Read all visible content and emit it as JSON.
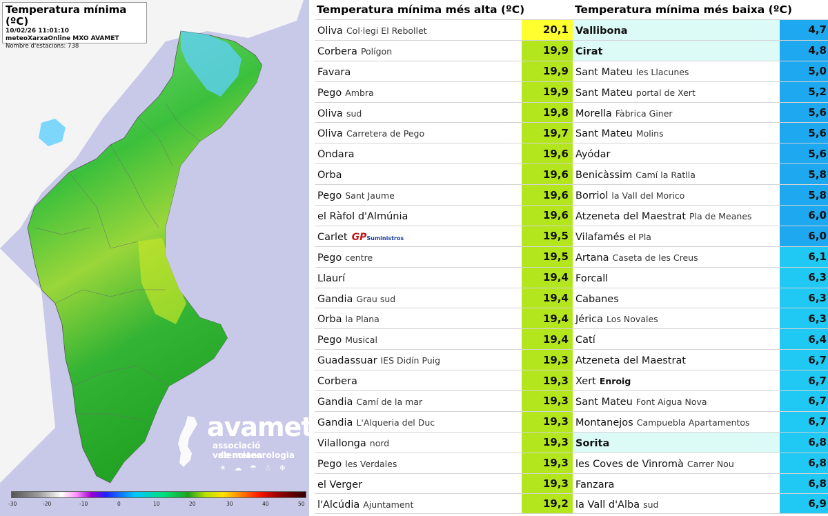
{
  "map": {
    "title": "Temperatura mínima (ºC)",
    "timestamp": "10/02/26 11:01:10",
    "source": "meteoXarxaOnline MXO AVAMET",
    "stations_count": "Nombre d'estacions: 738",
    "scale_ticks": [
      "-30",
      "-20",
      "-10",
      "0",
      "10",
      "20",
      "30",
      "40",
      "50"
    ],
    "logo": {
      "word": "avamet",
      "tagline_1": "associació valenciana",
      "tagline_2": "de meteorologia",
      "icons": "☀ ☁ ☂ ☃ ❄"
    },
    "colors": {
      "sea": "#c8c8e8",
      "land_low": "#1fa01f",
      "land_mid": "#4cc84c",
      "land_warm": "#b8e000",
      "land_cold": "#5fd0ff"
    }
  },
  "table_high": {
    "title": "Temperatura mínima més alta (ºC)",
    "rows": [
      {
        "name": "Oliva",
        "place": "Col·legi El Rebollet",
        "value": "20,1",
        "color": "#ffff30"
      },
      {
        "name": "Corbera",
        "place": "Polígon",
        "value": "19,9",
        "color": "#b4e61e"
      },
      {
        "name": "Favara",
        "place": "",
        "value": "19,9",
        "color": "#b4e61e"
      },
      {
        "name": "Pego",
        "place": "Ambra",
        "value": "19,9",
        "color": "#b4e61e"
      },
      {
        "name": "Oliva",
        "place": "sud",
        "value": "19,8",
        "color": "#b4e61e"
      },
      {
        "name": "Oliva",
        "place": "Carretera de Pego",
        "value": "19,7",
        "color": "#b4e61e"
      },
      {
        "name": "Ondara",
        "place": "",
        "value": "19,6",
        "color": "#b4e61e"
      },
      {
        "name": "Orba",
        "place": "",
        "value": "19,6",
        "color": "#b4e61e"
      },
      {
        "name": "Pego",
        "place": "Sant Jaume",
        "value": "19,6",
        "color": "#b4e61e"
      },
      {
        "name": "el Ràfol d'Almúnia",
        "place": "",
        "value": "19,6",
        "color": "#b4e61e"
      },
      {
        "name": "Carlet",
        "place": "",
        "value": "19,5",
        "color": "#b4e61e",
        "sponsor": {
          "gp": "GP",
          "sum": "Suministros"
        }
      },
      {
        "name": "Pego",
        "place": "centre",
        "value": "19,5",
        "color": "#b4e61e"
      },
      {
        "name": "Llaurí",
        "place": "",
        "value": "19,4",
        "color": "#b4e61e"
      },
      {
        "name": "Gandia",
        "place": "Grau sud",
        "value": "19,4",
        "color": "#b4e61e"
      },
      {
        "name": "Orba",
        "place": "la Plana",
        "value": "19,4",
        "color": "#b4e61e"
      },
      {
        "name": "Pego",
        "place": "Musical",
        "value": "19,4",
        "color": "#b4e61e"
      },
      {
        "name": "Guadassuar",
        "place": "IES Didín Puig",
        "value": "19,3",
        "color": "#b4e61e"
      },
      {
        "name": "Corbera",
        "place": "",
        "value": "19,3",
        "color": "#b4e61e"
      },
      {
        "name": "Gandia",
        "place": "Camí de la mar",
        "value": "19,3",
        "color": "#b4e61e"
      },
      {
        "name": "Gandia",
        "place": "L'Alqueria del Duc",
        "value": "19,3",
        "color": "#b4e61e"
      },
      {
        "name": "Vilallonga",
        "place": "nord",
        "value": "19,3",
        "color": "#b4e61e"
      },
      {
        "name": "Pego",
        "place": "les Verdales",
        "value": "19,3",
        "color": "#b4e61e"
      },
      {
        "name": "el Verger",
        "place": "",
        "value": "19,3",
        "color": "#b4e61e"
      },
      {
        "name": "l'Alcúdia",
        "place": "Ajuntament",
        "value": "19,2",
        "color": "#b4e61e"
      }
    ]
  },
  "table_low": {
    "title": "Temperatura mínima més baixa (ºC)",
    "rows": [
      {
        "name": "Vallibona",
        "place": "",
        "value": "4,7",
        "color": "#1ea8f0",
        "highlight": true
      },
      {
        "name": "Cirat",
        "place": "",
        "value": "4,8",
        "color": "#1ea8f0",
        "highlight": true
      },
      {
        "name": "Sant Mateu",
        "place": "les Llacunes",
        "value": "5,0",
        "color": "#1ea8f0"
      },
      {
        "name": "Sant Mateu",
        "place": "portal de Xert",
        "value": "5,2",
        "color": "#1ea8f0"
      },
      {
        "name": "Morella",
        "place": "Fàbrica Giner",
        "value": "5,6",
        "color": "#1ea8f0"
      },
      {
        "name": "Sant Mateu",
        "place": "Molins",
        "value": "5,6",
        "color": "#1ea8f0"
      },
      {
        "name": "Ayódar",
        "place": "",
        "value": "5,6",
        "color": "#1ea8f0"
      },
      {
        "name": "Benicàssim",
        "place": "Camí la Ratlla",
        "value": "5,8",
        "color": "#1ea8f0"
      },
      {
        "name": "Borriol",
        "place": "la Vall del Morico",
        "value": "5,8",
        "color": "#1ea8f0"
      },
      {
        "name": "Atzeneta del Maestrat",
        "place": "Pla de Meanes",
        "value": "6,0",
        "color": "#1ea8f0"
      },
      {
        "name": "Vilafamés",
        "place": "el Pla",
        "value": "6,0",
        "color": "#1ea8f0"
      },
      {
        "name": "Artana",
        "place": "Caseta de les Creus",
        "value": "6,1",
        "color": "#20c8f4"
      },
      {
        "name": "Forcall",
        "place": "",
        "value": "6,3",
        "color": "#20c8f4"
      },
      {
        "name": "Cabanes",
        "place": "",
        "value": "6,3",
        "color": "#20c8f4"
      },
      {
        "name": "Jérica",
        "place": "Los Novales",
        "value": "6,3",
        "color": "#20c8f4"
      },
      {
        "name": "Catí",
        "place": "",
        "value": "6,4",
        "color": "#20c8f4"
      },
      {
        "name": "Atzeneta del Maestrat",
        "place": "",
        "value": "6,7",
        "color": "#20c8f4"
      },
      {
        "name": "Xert",
        "place": "",
        "place_bold": "Enroig",
        "value": "6,7",
        "color": "#20c8f4"
      },
      {
        "name": "Sant Mateu",
        "place": "Font Aigua Nova",
        "value": "6,7",
        "color": "#20c8f4"
      },
      {
        "name": "Montanejos",
        "place": "Campuebla Apartamentos",
        "value": "6,7",
        "color": "#20c8f4"
      },
      {
        "name": "Sorita",
        "place": "",
        "value": "6,8",
        "color": "#20c8f4",
        "highlight": true
      },
      {
        "name": "les Coves de Vinromà",
        "place": "Carrer Nou",
        "value": "6,8",
        "color": "#20c8f4"
      },
      {
        "name": "Fanzara",
        "place": "",
        "value": "6,8",
        "color": "#20c8f4"
      },
      {
        "name": "la Vall d'Alba",
        "place": "sud",
        "value": "6,9",
        "color": "#20c8f4"
      }
    ]
  }
}
